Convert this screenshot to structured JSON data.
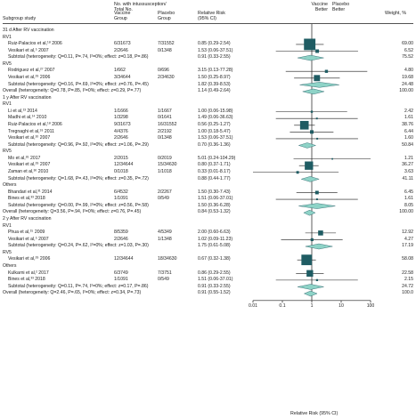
{
  "headers": {
    "study": "Subgroup study",
    "events_group": "No. with intussusception/ Total No.",
    "vaccine_group": "Vaccine Group",
    "placebo_group": "Placebo Group",
    "rr": "Relative Risk (95% CI)",
    "favors_vaccine": "Vaccine Better",
    "favors_placebo": "Placebo Better",
    "weight": "Weight, %"
  },
  "axis": {
    "label": "Relative Risk (95% CI)",
    "ticks": [
      "0.01",
      "0.1",
      "1",
      "10",
      "100"
    ],
    "range": [
      0.01,
      100
    ],
    "scale": "log"
  },
  "colors": {
    "ink": "#1a1a1a",
    "marker": "#1f5c63",
    "diamond": "#8ed3c7",
    "gridline": "#9aa0a6"
  },
  "chart_data": {
    "type": "forest",
    "rows": [
      {
        "kind": "section",
        "label": "31 d After RV vaccination"
      },
      {
        "kind": "group",
        "label": "RV1"
      },
      {
        "kind": "study",
        "label": "Ruiz-Palacios et al,¹⁸ 2006",
        "vaccine": "6/31673",
        "placebo": "7/31552",
        "rr_text": "0.85 (0.29-2.54)",
        "weight": "69.00",
        "rr": 0.85,
        "lo": 0.29,
        "hi": 2.54,
        "w": 69.0
      },
      {
        "kind": "study",
        "label": "Vesikari et al,⁵ 2007",
        "vaccine": "2/2646",
        "placebo": "0/1348",
        "rr_text": "1.53 (0.06-37.51)",
        "weight": "6.52",
        "rr": 1.53,
        "lo": 0.06,
        "hi": 37.51,
        "w": 6.52
      },
      {
        "kind": "subtotal",
        "label": "Subtotal (heterogeneity: Q=0.11, P=.74, I²=0%; effect: z=0.18, P=.86)",
        "rr_text": "0.91 (0.33-2.55)",
        "weight": "75.52",
        "rr": 0.91,
        "lo": 0.33,
        "hi": 2.55
      },
      {
        "kind": "group",
        "label": "RV5"
      },
      {
        "kind": "study",
        "label": "Rodriguez et al,²⁷ 2007",
        "vaccine": "1/662",
        "placebo": "0/696",
        "rr_text": "3.15 (0.13-77.28)",
        "weight": "4.80",
        "rr": 3.15,
        "lo": 0.13,
        "hi": 77.28,
        "w": 4.8
      },
      {
        "kind": "study",
        "label": "Vesikari et al,²⁹ 2006",
        "vaccine": "3/34644",
        "placebo": "2/34630",
        "rr_text": "1.50 (0.25-8.97)",
        "weight": "19.68",
        "rr": 1.5,
        "lo": 0.25,
        "hi": 8.97,
        "w": 19.68
      },
      {
        "kind": "subtotal",
        "label": "Subtotal (heterogeneity: Q=0.16, P=.69, I²=0%; effect: z=0.76, P=.45)",
        "rr_text": "1.82 (0.39-8.53)",
        "weight": "24.48",
        "rr": 1.82,
        "lo": 0.39,
        "hi": 8.53
      },
      {
        "kind": "overall",
        "label": "Overall (heterogeneity: Q=0.78, P=.85, I²=0%; effect: z=0.29, P=.77)",
        "rr_text": "1.14 (0.49-2.64)",
        "weight": "100.00",
        "rr": 1.14,
        "lo": 0.49,
        "hi": 2.64
      },
      {
        "kind": "section",
        "label": "1 y After RV vaccination"
      },
      {
        "kind": "group",
        "label": "RV1"
      },
      {
        "kind": "study",
        "label": "Li et al,¹³ 2014",
        "vaccine": "1/1666",
        "placebo": "1/1667",
        "rr_text": "1.00 (0.06-15.98)",
        "weight": "2.42",
        "rr": 1.0,
        "lo": 0.06,
        "hi": 15.98,
        "w": 2.42
      },
      {
        "kind": "study",
        "label": "Madhi et al,¹⁴ 2010",
        "vaccine": "1/3298",
        "placebo": "0/1641",
        "rr_text": "1.49 (0.06-36.63)",
        "weight": "1.61",
        "rr": 1.49,
        "lo": 0.06,
        "hi": 36.63,
        "w": 1.61
      },
      {
        "kind": "study",
        "label": "Ruiz-Palacios et al,¹⁸ 2006",
        "vaccine": "9/31673",
        "placebo": "16/31552",
        "rr_text": "0.56 (0.25-1.27)",
        "weight": "38.76",
        "rr": 0.56,
        "lo": 0.25,
        "hi": 1.27,
        "w": 38.76
      },
      {
        "kind": "study",
        "label": "Tregnaghi et al,¹⁹ 2011",
        "vaccine": "4/4376",
        "placebo": "2/2192",
        "rr_text": "1.00 (0.18-5.47)",
        "weight": "6.44",
        "rr": 1.0,
        "lo": 0.18,
        "hi": 5.47,
        "w": 6.44
      },
      {
        "kind": "study",
        "label": "Vesikari et al,²⁰ 2007",
        "vaccine": "2/2646",
        "placebo": "0/1348",
        "rr_text": "1.53 (0.06-37.51)",
        "weight": "1.60",
        "rr": 1.53,
        "lo": 0.06,
        "hi": 37.51,
        "w": 1.6
      },
      {
        "kind": "subtotal",
        "label": "Subtotal (heterogeneity: Q=0.96, P=.92, I²=0%; effect: z=1.06, P=.29)",
        "rr_text": "0.70 (0.36-1.36)",
        "weight": "50.84",
        "rr": 0.7,
        "lo": 0.36,
        "hi": 1.36
      },
      {
        "kind": "group",
        "label": "RV5"
      },
      {
        "kind": "study",
        "label": "Mo et al,²⁶ 2017",
        "vaccine": "2/2015",
        "placebo": "0/2019",
        "rr_text": "5.01 (0.24-104.29)",
        "weight": "1.21",
        "rr": 5.01,
        "lo": 0.24,
        "hi": 104.29,
        "w": 1.21
      },
      {
        "kind": "study",
        "label": "Vesikari et al,²⁹ 2007",
        "vaccine": "12/34644",
        "placebo": "15/34630",
        "rr_text": "0.80 (0.37-1.71)",
        "weight": "36.27",
        "rr": 0.8,
        "lo": 0.37,
        "hi": 1.71,
        "w": 36.27
      },
      {
        "kind": "study",
        "label": "Zaman et al,³⁰ 2010",
        "vaccine": "0/1018",
        "placebo": "1/1018",
        "rr_text": "0.33 (0.01-8.17)",
        "weight": "3.63",
        "rr": 0.33,
        "lo": 0.01,
        "hi": 8.17,
        "w": 3.63
      },
      {
        "kind": "subtotal",
        "label": "Subtotal (heterogeneity: Q=1.68, P=.43, I²=0%; effect: z=0.35, P=.72)",
        "rr_text": "0.88 (0.44-1.77)",
        "weight": "41.11",
        "rr": 0.88,
        "lo": 0.44,
        "hi": 1.77
      },
      {
        "kind": "group",
        "label": "Others"
      },
      {
        "kind": "study",
        "label": "Bhandari et al,³¹ 2014",
        "vaccine": "6/4532",
        "placebo": "2/2267",
        "rr_text": "1.50 (0.30-7.43)",
        "weight": "6.45",
        "rr": 1.5,
        "lo": 0.3,
        "hi": 7.43,
        "w": 6.45
      },
      {
        "kind": "study",
        "label": "Bines et al,³³ 2018",
        "vaccine": "1/1091",
        "placebo": "0/549",
        "rr_text": "1.51 (0.06-37.01)",
        "weight": "1.61",
        "rr": 1.51,
        "lo": 0.06,
        "hi": 37.01,
        "w": 1.61
      },
      {
        "kind": "subtotal",
        "label": "Subtotal (heterogeneity: Q=0.00, P=.99, I²=0%; effect: z=0.56, P=.58)",
        "rr_text": "1.50 (0.36-6.28)",
        "weight": "8.05",
        "rr": 1.5,
        "lo": 0.36,
        "hi": 6.28
      },
      {
        "kind": "overall",
        "label": "Overall (heterogeneity: Q=3.56, P=.94, I²=0%; effect: z=0.76, P=.45)",
        "rr_text": "0.84 (0.53-1.32)",
        "weight": "100.00",
        "rr": 0.84,
        "lo": 0.53,
        "hi": 1.32
      },
      {
        "kind": "section",
        "label": "2 y After RV vaccination"
      },
      {
        "kind": "group",
        "label": "RV1"
      },
      {
        "kind": "study",
        "label": "Phua et al,¹⁵ 2009",
        "vaccine": "8/5359",
        "placebo": "4/5349",
        "rr_text": "2.00 (0.60-6.63)",
        "weight": "12.92",
        "rr": 2.0,
        "lo": 0.6,
        "hi": 6.63,
        "w": 12.92
      },
      {
        "kind": "study",
        "label": "Vesikari et al,⁵ 2007",
        "vaccine": "2/2646",
        "placebo": "1/1348",
        "rr_text": "1.02 (0.09-11.23)",
        "weight": "4.27",
        "rr": 1.02,
        "lo": 0.09,
        "hi": 11.23,
        "w": 4.27
      },
      {
        "kind": "subtotal",
        "label": "Subtotal (heterogeneity: Q=0.24, P=.62, I²=0%; effect: z=1.03, P=.30)",
        "rr_text": "1.75 (0.61-5.08)",
        "weight": "17.19",
        "rr": 1.75,
        "lo": 0.61,
        "hi": 5.08
      },
      {
        "kind": "group",
        "label": "RV5"
      },
      {
        "kind": "study",
        "label": "Vesikari et al,²⁹ 2006",
        "vaccine": "12/34644",
        "placebo": "18/34630",
        "rr_text": "0.67 (0.32-1.38)",
        "weight": "58.08",
        "rr": 0.67,
        "lo": 0.32,
        "hi": 1.38,
        "w": 58.08
      },
      {
        "kind": "group",
        "label": "Others"
      },
      {
        "kind": "study",
        "label": "Kulkarni et al,² 2017",
        "vaccine": "6/3749",
        "placebo": "7/3751",
        "rr_text": "0.86 (0.29-2.55)",
        "weight": "22.58",
        "rr": 0.86,
        "lo": 0.29,
        "hi": 2.55,
        "w": 22.58
      },
      {
        "kind": "study",
        "label": "Bines et al,³³ 2018",
        "vaccine": "1/1091",
        "placebo": "0/549",
        "rr_text": "1.51 (0.06-37.01)",
        "weight": "2.15",
        "rr": 1.51,
        "lo": 0.06,
        "hi": 37.01,
        "w": 2.15
      },
      {
        "kind": "subtotal",
        "label": "Subtotal (heterogeneity: Q=0.11, P=.74, I²=0%; effect: z=0.17, P=.86)",
        "rr_text": "0.91 (0.33-2.55)",
        "weight": "24.72",
        "rr": 0.91,
        "lo": 0.33,
        "hi": 2.55
      },
      {
        "kind": "overall",
        "label": "Overall (heterogeneity: Q=2.46, P=.65, I²=0%; effect: z=0.34, P=.73)",
        "rr_text": "0.91 (0.55-1.52)",
        "weight": "100.0",
        "rr": 0.91,
        "lo": 0.55,
        "hi": 1.52
      }
    ]
  }
}
